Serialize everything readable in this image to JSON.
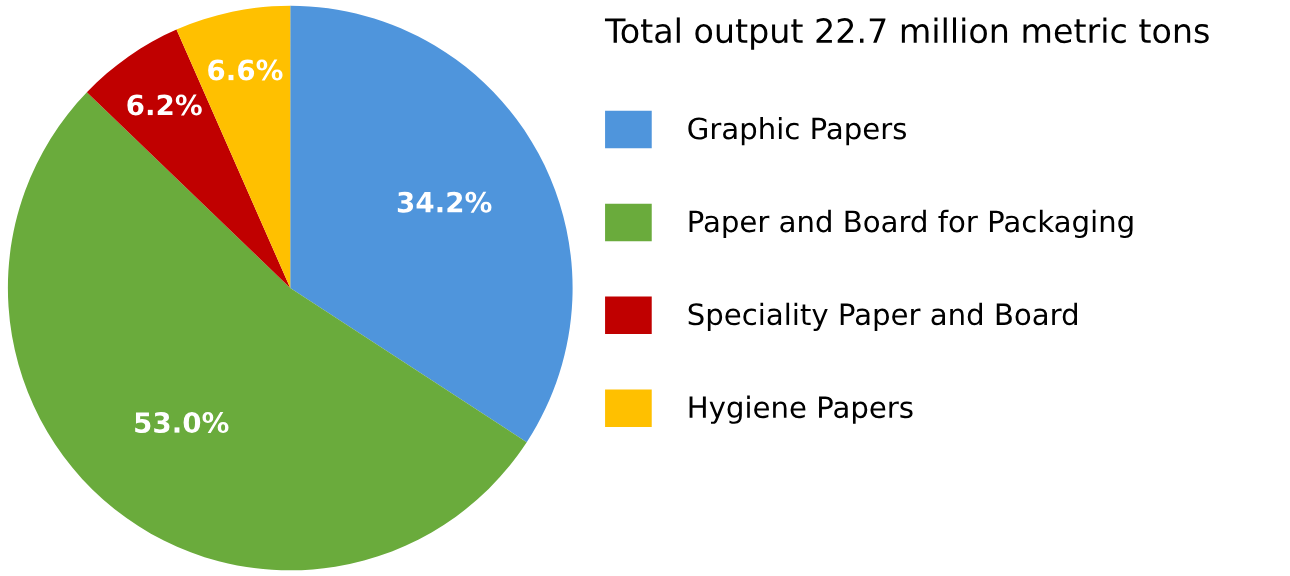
{
  "chart_data": {
    "type": "pie",
    "legend_title": "Total output 22.7 million metric tons",
    "categories": [
      "Graphic Papers",
      "Paper and Board for Packaging",
      "Speciality Paper and Board",
      "Hygiene Papers"
    ],
    "values": [
      34.2,
      53.0,
      6.2,
      6.6
    ],
    "colors": [
      "#4f95dc",
      "#6aab3c",
      "#c00000",
      "#ffc000"
    ],
    "value_labels": [
      "34.2%",
      "53.0%",
      "6.2%",
      "6.6%"
    ],
    "legend": "right"
  }
}
